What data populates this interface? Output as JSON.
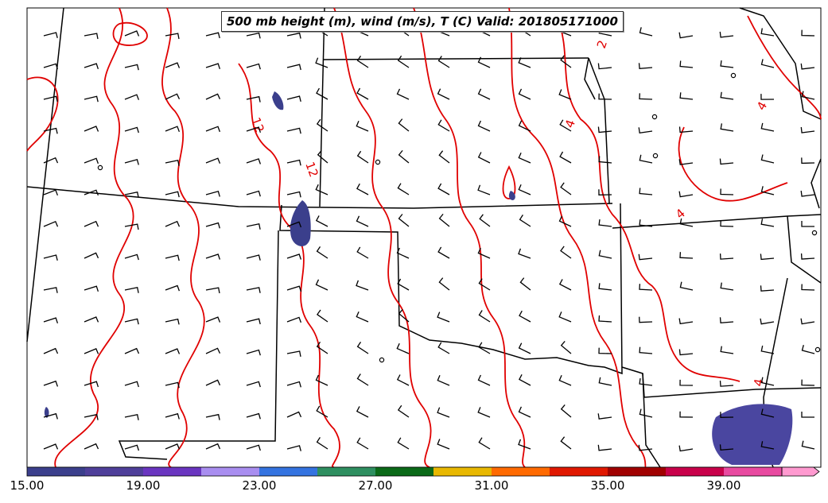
{
  "map": {
    "title": "500 mb height (m), wind (m/s), T (C) Valid: 201805171000",
    "contour_color": "#e00000",
    "contour_labels": [
      "12",
      "12",
      "2",
      "4",
      "4",
      "4",
      "4"
    ],
    "colorbar": {
      "tick_labels": [
        "15.00",
        "19.00",
        "23.00",
        "27.00",
        "31.00",
        "35.00",
        "39.00"
      ],
      "colors": [
        "#3b3f8c",
        "#4f3f9a",
        "#6a35c0",
        "#a98ef0",
        "#3473e0",
        "#2e8f60",
        "#0b6a18",
        "#e8b800",
        "#ff6a00",
        "#e01800",
        "#a00000",
        "#c8004a",
        "#e84aa0",
        "#ff9ad0"
      ],
      "extend": "right"
    },
    "wind_barb_color": "#000000",
    "fill_color": "#3b3f8c"
  }
}
